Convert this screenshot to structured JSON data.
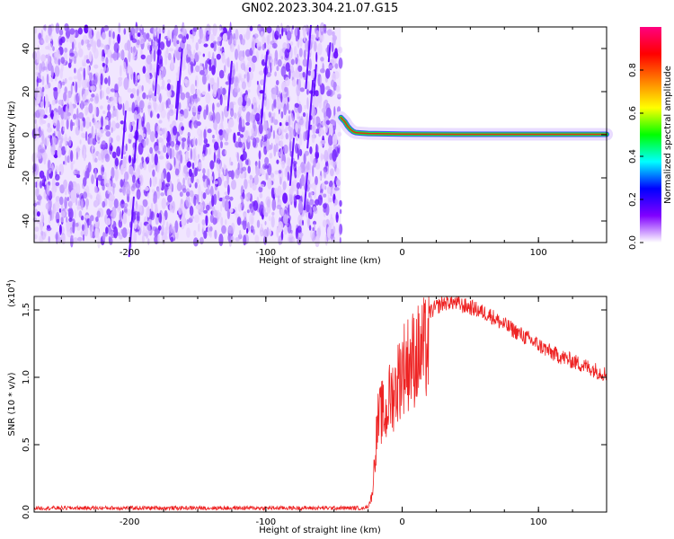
{
  "title": "GN02.2023.304.21.07.G15",
  "chart_data": [
    {
      "type": "heatmap",
      "name": "spectrogram",
      "xlabel": "Height of straight line (km)",
      "ylabel": "Frequency (Hz)",
      "xlim": [
        -270,
        150
      ],
      "ylim": [
        -50,
        50
      ],
      "xticks": [
        -200,
        -100,
        0,
        100
      ],
      "yticks": [
        -40,
        -20,
        0,
        20,
        40
      ],
      "noise_region_x": [
        -270,
        -45
      ],
      "signal_trace": {
        "x": [
          -45,
          -42,
          -40,
          -38,
          -36,
          -34,
          -30,
          -25,
          -20,
          0,
          50,
          100,
          150
        ],
        "y": [
          8,
          6,
          4,
          2.5,
          1.5,
          1,
          0.8,
          0.6,
          0.5,
          0.3,
          0.2,
          0.2,
          0.2
        ]
      },
      "colorbar": {
        "label": "Normalized spectral amplitude",
        "range": [
          0,
          1
        ],
        "ticks": [
          0.0,
          0.2,
          0.4,
          0.6,
          0.8
        ],
        "colors": [
          "#ffffff",
          "#8000ff",
          "#0000ff",
          "#00ffff",
          "#00ff00",
          "#ffff00",
          "#ff8000",
          "#ff0000",
          "#ff0080"
        ]
      }
    },
    {
      "type": "line",
      "name": "snr",
      "xlabel": "Height of straight line (km)",
      "ylabel": "SNR (10 * v/v)",
      "yscale_label": "(x10",
      "yscale_exp": "4",
      "yscale_close": ")",
      "xlim": [
        -270,
        150
      ],
      "ylim": [
        0,
        1.6
      ],
      "xticks": [
        -200,
        -100,
        0,
        100
      ],
      "yticks": [
        0.0,
        0.5,
        1.0,
        1.5
      ],
      "color": "#ee2222",
      "series_envelope": {
        "x": [
          -270,
          -30,
          -25,
          -22,
          -20,
          -18,
          -15,
          -12,
          -10,
          -5,
          0,
          5,
          10,
          15,
          20,
          25,
          30,
          35,
          40,
          45,
          50,
          55,
          60,
          65,
          70,
          80,
          90,
          100,
          110,
          120,
          130,
          140,
          150
        ],
        "y": [
          0.03,
          0.03,
          0.05,
          0.15,
          0.5,
          0.8,
          0.9,
          0.85,
          1.0,
          1.1,
          1.3,
          1.35,
          1.4,
          1.45,
          1.48,
          1.52,
          1.55,
          1.56,
          1.55,
          1.53,
          1.52,
          1.5,
          1.48,
          1.46,
          1.42,
          1.36,
          1.3,
          1.24,
          1.18,
          1.14,
          1.1,
          1.06,
          1.02
        ]
      }
    }
  ]
}
